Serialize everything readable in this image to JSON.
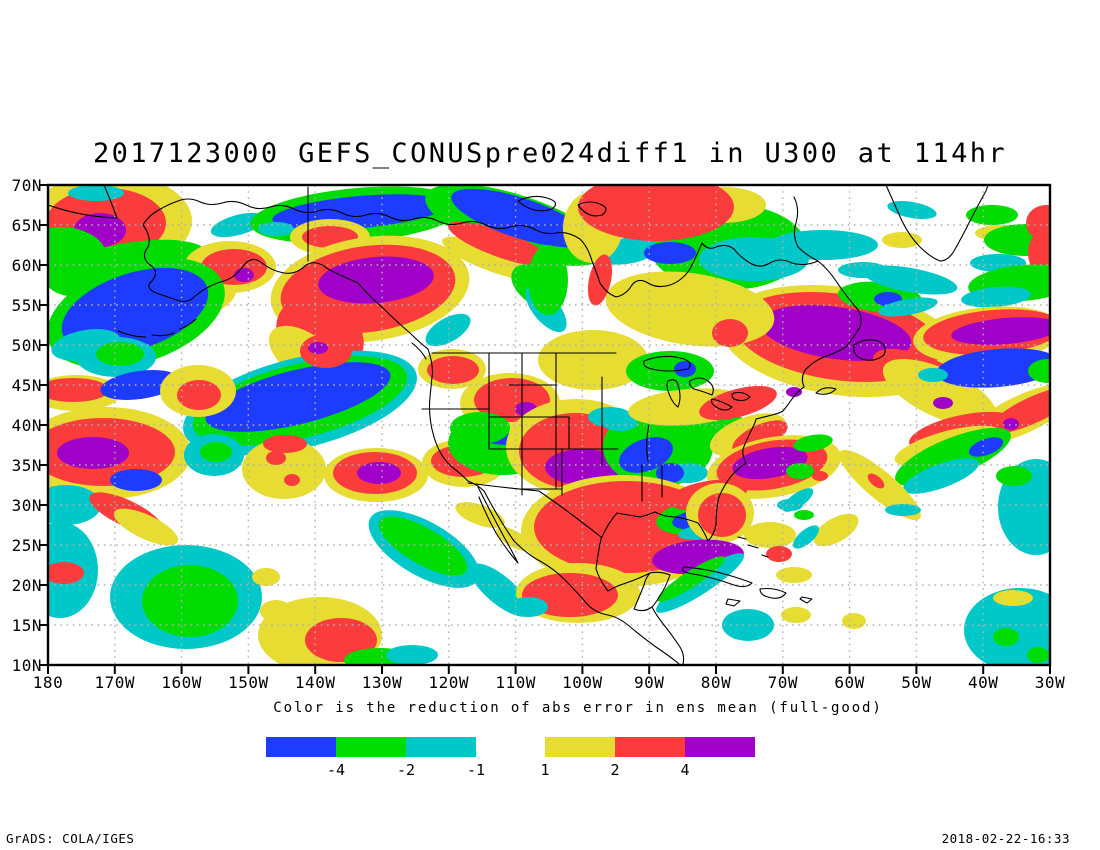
{
  "title": "2017123000 GEFS_CONUSpre024diff1 in U300 at 114hr",
  "caption": "Color is the reduction of abs error in ens mean (full-good)",
  "footer": {
    "left": "GrADS: COLA/IGES",
    "right": "2018-02-22-16:33"
  },
  "chart_data": {
    "type": "heatmap",
    "subtype": "filled-contour-map",
    "title": "2017123000 GEFS_CONUSpre024diff1 in U300 at 114hr",
    "map_extent": {
      "lon_min": -180,
      "lon_max": -30,
      "lat_min": 10,
      "lat_max": 70
    },
    "grid": "dotted 5-degree latitude / 10-degree longitude graticule",
    "x_ticks": [
      "180",
      "170W",
      "160W",
      "150W",
      "140W",
      "130W",
      "120W",
      "110W",
      "100W",
      "90W",
      "80W",
      "70W",
      "60W",
      "50W",
      "40W",
      "30W"
    ],
    "y_ticks": [
      "70N",
      "65N",
      "60N",
      "55N",
      "50N",
      "45N",
      "40N",
      "35N",
      "30N",
      "25N",
      "20N",
      "15N",
      "10N"
    ],
    "palette": {
      "B": "#1E3CFF",
      "G": "#00DC00",
      "C": "#00C8C8",
      "Y": "#E6DC32",
      "R": "#FA3C3C",
      "P": "#A000C8"
    },
    "legend": {
      "caption": "Color is the reduction of abs error in ens mean (full-good)",
      "bars": [
        {
          "colors": [
            "B",
            "G",
            "C"
          ],
          "labels": [
            "-4",
            "-2",
            "-1"
          ],
          "label_anchor": "right"
        },
        {
          "colors": [
            "Y",
            "R",
            "P"
          ],
          "labels": [
            "1",
            "2",
            "4"
          ],
          "label_anchor": "left"
        }
      ],
      "levels_meaning": "negative = error reduction (blue/green/cyan), positive = error increase (yellow/red/purple)"
    },
    "regions": [
      [
        "Y",
        62,
        36,
        82,
        48,
        0
      ],
      [
        "R",
        58,
        38,
        60,
        35,
        0
      ],
      [
        "P",
        52,
        45,
        26,
        17,
        0
      ],
      [
        "C",
        48,
        8,
        28,
        8,
        0
      ],
      [
        "G",
        12,
        70,
        46,
        28,
        0
      ],
      [
        "G",
        80,
        84,
        82,
        26,
        -10
      ],
      [
        "C",
        190,
        40,
        28,
        10,
        -15
      ],
      [
        "R",
        142,
        112,
        45,
        12,
        -28
      ],
      [
        "Y",
        152,
        126,
        40,
        10,
        -28
      ],
      [
        "G",
        310,
        30,
        108,
        27,
        -5
      ],
      [
        "B",
        312,
        27,
        88,
        16,
        -5
      ],
      [
        "C",
        228,
        44,
        18,
        7,
        0
      ],
      [
        "Y",
        282,
        52,
        40,
        18,
        0
      ],
      [
        "R",
        282,
        52,
        28,
        11,
        0
      ],
      [
        "G",
        468,
        40,
        95,
        30,
        18
      ],
      [
        "Y",
        446,
        74,
        55,
        13,
        20
      ],
      [
        "R",
        452,
        59,
        55,
        13,
        20
      ],
      [
        "B",
        472,
        33,
        72,
        20,
        18
      ],
      [
        "G",
        490,
        102,
        30,
        18,
        35
      ],
      [
        "C",
        498,
        124,
        28,
        13,
        50
      ],
      [
        "Y",
        322,
        104,
        100,
        52,
        -8
      ],
      [
        "R",
        320,
        104,
        88,
        43,
        -8
      ],
      [
        "P",
        328,
        95,
        58,
        23,
        -5
      ],
      [
        "R",
        272,
        150,
        46,
        36,
        30
      ],
      [
        "Y",
        256,
        170,
        40,
        22,
        35
      ],
      [
        "C",
        400,
        145,
        25,
        12,
        -30
      ],
      [
        "Y",
        182,
        82,
        46,
        26,
        0
      ],
      [
        "R",
        186,
        82,
        33,
        18,
        0
      ],
      [
        "P",
        196,
        90,
        10,
        7,
        0
      ],
      [
        "G",
        88,
        128,
        92,
        50,
        -18
      ],
      [
        "B",
        87,
        126,
        76,
        38,
        -18
      ],
      [
        "C",
        38,
        160,
        35,
        15,
        -10
      ],
      [
        "C",
        68,
        172,
        40,
        20,
        0
      ],
      [
        "G",
        72,
        169,
        24,
        12,
        0
      ],
      [
        "C",
        252,
        218,
        120,
        45,
        -14
      ],
      [
        "G",
        252,
        216,
        110,
        37,
        -14
      ],
      [
        "B",
        250,
        212,
        95,
        27,
        -14
      ],
      [
        "R",
        278,
        166,
        26,
        17,
        0
      ],
      [
        "P",
        270,
        163,
        10,
        6,
        0
      ],
      [
        "Y",
        28,
        208,
        45,
        18,
        0
      ],
      [
        "R",
        25,
        205,
        36,
        12,
        0
      ],
      [
        "B",
        92,
        200,
        40,
        14,
        -8
      ],
      [
        "Y",
        150,
        206,
        38,
        26,
        0
      ],
      [
        "R",
        151,
        210,
        22,
        15,
        0
      ],
      [
        "Y",
        58,
        268,
        85,
        46,
        0
      ],
      [
        "R",
        55,
        267,
        72,
        34,
        0
      ],
      [
        "P",
        45,
        268,
        36,
        16,
        0
      ],
      [
        "B",
        88,
        295,
        26,
        11,
        0
      ],
      [
        "C",
        18,
        320,
        35,
        20,
        0
      ],
      [
        "R",
        78,
        328,
        40,
        13,
        25
      ],
      [
        "Y",
        98,
        342,
        35,
        12,
        25
      ],
      [
        "C",
        166,
        270,
        30,
        21,
        0
      ],
      [
        "G",
        168,
        267,
        16,
        10,
        0
      ],
      [
        "Y",
        236,
        284,
        42,
        30,
        0
      ],
      [
        "R",
        228,
        273,
        10,
        7,
        0
      ],
      [
        "R",
        244,
        295,
        8,
        6,
        0
      ],
      [
        "R",
        237,
        259,
        22,
        9,
        0
      ],
      [
        "Y",
        328,
        290,
        52,
        27,
        0
      ],
      [
        "R",
        327,
        288,
        42,
        21,
        0
      ],
      [
        "P",
        331,
        288,
        22,
        11,
        0
      ],
      [
        "Y",
        416,
        278,
        42,
        24,
        0
      ],
      [
        "R",
        415,
        276,
        32,
        16,
        0
      ],
      [
        "G",
        455,
        258,
        55,
        32,
        0
      ],
      [
        "B",
        448,
        247,
        30,
        12,
        10
      ],
      [
        "B",
        492,
        258,
        18,
        9,
        0
      ],
      [
        "C",
        138,
        412,
        76,
        52,
        0
      ],
      [
        "G",
        142,
        416,
        48,
        36,
        0
      ],
      [
        "Y",
        218,
        392,
        14,
        9,
        0
      ],
      [
        "Y",
        228,
        426,
        16,
        11,
        0
      ],
      [
        "Y",
        272,
        450,
        62,
        38,
        0
      ],
      [
        "R",
        293,
        455,
        36,
        22,
        0
      ],
      [
        "G",
        332,
        475,
        36,
        12,
        0
      ],
      [
        "C",
        364,
        470,
        26,
        10,
        0
      ],
      [
        "C",
        376,
        364,
        62,
        27,
        30
      ],
      [
        "G",
        375,
        361,
        50,
        18,
        30
      ],
      [
        "C",
        452,
        405,
        38,
        14,
        40
      ],
      [
        "Y",
        432,
        330,
        26,
        10,
        20
      ],
      [
        "Y",
        466,
        354,
        20,
        8,
        30
      ],
      [
        "C",
        12,
        385,
        38,
        48,
        0
      ],
      [
        "R",
        16,
        388,
        20,
        11,
        0
      ],
      [
        "Y",
        462,
        218,
        50,
        30,
        0
      ],
      [
        "R",
        464,
        215,
        38,
        22,
        0
      ],
      [
        "P",
        478,
        224,
        11,
        7,
        0
      ],
      [
        "Y",
        404,
        184,
        34,
        20,
        0
      ],
      [
        "R",
        405,
        185,
        26,
        14,
        0
      ],
      [
        "G",
        432,
        243,
        30,
        16,
        0
      ],
      [
        "Y",
        528,
        262,
        70,
        48,
        0
      ],
      [
        "R",
        527,
        266,
        56,
        38,
        0
      ],
      [
        "P",
        535,
        282,
        38,
        18,
        0
      ],
      [
        "G",
        610,
        262,
        55,
        40,
        0
      ],
      [
        "C",
        640,
        288,
        20,
        10,
        0
      ],
      [
        "C",
        572,
        238,
        18,
        8,
        0
      ],
      [
        "B",
        598,
        270,
        28,
        16,
        -20
      ],
      [
        "B",
        622,
        288,
        14,
        10,
        0
      ],
      [
        "G",
        665,
        243,
        38,
        16,
        0
      ],
      [
        "Y",
        700,
        250,
        40,
        18,
        -20
      ],
      [
        "R",
        712,
        252,
        30,
        12,
        -25
      ],
      [
        "Y",
        726,
        282,
        68,
        30,
        -10
      ],
      [
        "R",
        724,
        280,
        56,
        24,
        -10
      ],
      [
        "P",
        722,
        278,
        38,
        15,
        -10
      ],
      [
        "G",
        765,
        258,
        20,
        8,
        -10
      ],
      [
        "C",
        692,
        222,
        12,
        5,
        0
      ],
      [
        "G",
        752,
        286,
        14,
        8,
        0
      ],
      [
        "R",
        772,
        291,
        8,
        5,
        0
      ],
      [
        "Y",
        792,
        156,
        120,
        54,
        8
      ],
      [
        "R",
        790,
        152,
        104,
        43,
        8
      ],
      [
        "P",
        788,
        148,
        76,
        26,
        8
      ],
      [
        "R",
        880,
        196,
        60,
        22,
        25
      ],
      [
        "Y",
        892,
        208,
        62,
        24,
        25
      ],
      [
        "G",
        832,
        112,
        42,
        15,
        5
      ],
      [
        "B",
        840,
        114,
        14,
        7,
        0
      ],
      [
        "C",
        862,
        95,
        48,
        12,
        10
      ],
      [
        "G",
        680,
        62,
        78,
        43,
        0
      ],
      [
        "C",
        706,
        74,
        55,
        22,
        0
      ],
      [
        "C",
        578,
        66,
        32,
        13,
        -8
      ],
      [
        "B",
        622,
        68,
        26,
        11,
        0
      ],
      [
        "C",
        775,
        60,
        55,
        15,
        0
      ],
      [
        "Y",
        545,
        42,
        30,
        36,
        5
      ],
      [
        "Y",
        676,
        20,
        42,
        18,
        0
      ],
      [
        "R",
        608,
        22,
        78,
        34,
        0
      ],
      [
        "Y",
        642,
        124,
        85,
        36,
        8
      ],
      [
        "R",
        682,
        148,
        18,
        14,
        0
      ],
      [
        "R",
        552,
        95,
        11,
        26,
        12
      ],
      [
        "Y",
        545,
        175,
        55,
        30,
        0
      ],
      [
        "C",
        562,
        232,
        22,
        10,
        0
      ],
      [
        "G",
        500,
        95,
        20,
        35,
        0
      ],
      [
        "G",
        622,
        186,
        44,
        20,
        0
      ],
      [
        "B",
        637,
        184,
        11,
        8,
        0
      ],
      [
        "Y",
        640,
        222,
        60,
        18,
        -5
      ],
      [
        "R",
        690,
        218,
        40,
        14,
        -15
      ],
      [
        "P",
        746,
        207,
        8,
        5,
        0
      ],
      [
        "Y",
        952,
        48,
        25,
        8,
        0
      ],
      [
        "G",
        978,
        55,
        42,
        16,
        0
      ],
      [
        "R",
        1002,
        68,
        22,
        26,
        0
      ],
      [
        "C",
        950,
        78,
        28,
        9,
        0
      ],
      [
        "C",
        864,
        25,
        25,
        8,
        10
      ],
      [
        "G",
        944,
        30,
        26,
        10,
        0
      ],
      [
        "Y",
        854,
        55,
        20,
        8,
        0
      ],
      [
        "R",
        998,
        38,
        20,
        18,
        0
      ],
      [
        "G",
        975,
        98,
        55,
        18,
        -5
      ],
      [
        "C",
        948,
        112,
        35,
        10,
        -5
      ],
      [
        "C",
        860,
        122,
        30,
        8,
        -10
      ],
      [
        "C",
        815,
        85,
        25,
        8,
        0
      ],
      [
        "Y",
        940,
        150,
        75,
        28,
        -5
      ],
      [
        "R",
        945,
        147,
        70,
        22,
        -5
      ],
      [
        "P",
        958,
        146,
        55,
        13,
        -5
      ],
      [
        "B",
        950,
        183,
        62,
        19,
        -5
      ],
      [
        "G",
        1000,
        186,
        20,
        12,
        0
      ],
      [
        "C",
        885,
        190,
        15,
        7,
        0
      ],
      [
        "Y",
        975,
        229,
        60,
        19,
        -25
      ],
      [
        "R",
        985,
        225,
        48,
        13,
        -25
      ],
      [
        "R",
        915,
        247,
        55,
        17,
        -12
      ],
      [
        "P",
        895,
        218,
        10,
        6,
        0
      ],
      [
        "P",
        963,
        239,
        8,
        6,
        0
      ],
      [
        "Y",
        900,
        261,
        55,
        15,
        -15
      ],
      [
        "G",
        905,
        272,
        62,
        19,
        -22
      ],
      [
        "B",
        938,
        262,
        18,
        8,
        -20
      ],
      [
        "C",
        893,
        291,
        40,
        12,
        -20
      ],
      [
        "C",
        988,
        322,
        38,
        48,
        0
      ],
      [
        "G",
        966,
        291,
        18,
        10,
        0
      ],
      [
        "Y",
        575,
        346,
        102,
        56,
        0
      ],
      [
        "R",
        578,
        342,
        92,
        46,
        0
      ],
      [
        "G",
        650,
        332,
        42,
        17,
        -8
      ],
      [
        "B",
        645,
        335,
        21,
        9,
        -8
      ],
      [
        "C",
        660,
        346,
        30,
        8,
        -8
      ],
      [
        "R",
        660,
        310,
        40,
        14,
        -10
      ],
      [
        "Y",
        672,
        328,
        34,
        30,
        0
      ],
      [
        "R",
        674,
        330,
        24,
        22,
        0
      ],
      [
        "P",
        650,
        372,
        46,
        17,
        -5
      ],
      [
        "C",
        652,
        398,
        52,
        11,
        -33
      ],
      [
        "G",
        643,
        394,
        40,
        8,
        -33
      ],
      [
        "Y",
        530,
        408,
        62,
        30,
        0
      ],
      [
        "R",
        522,
        410,
        48,
        22,
        0
      ],
      [
        "C",
        480,
        422,
        20,
        10,
        0
      ],
      [
        "Y",
        722,
        350,
        26,
        13,
        0
      ],
      [
        "R",
        731,
        369,
        13,
        8,
        0
      ],
      [
        "Y",
        746,
        390,
        18,
        8,
        0
      ],
      [
        "C",
        742,
        320,
        13,
        6,
        0
      ],
      [
        "C",
        750,
        315,
        18,
        7,
        -35
      ],
      [
        "G",
        756,
        330,
        10,
        5,
        0
      ],
      [
        "C",
        700,
        440,
        26,
        16,
        0
      ],
      [
        "Y",
        748,
        430,
        15,
        8,
        0
      ],
      [
        "Y",
        806,
        436,
        12,
        8,
        0
      ],
      [
        "Y",
        788,
        345,
        25,
        12,
        -30
      ],
      [
        "C",
        758,
        352,
        16,
        7,
        -40
      ],
      [
        "C",
        972,
        445,
        56,
        42,
        0
      ],
      [
        "G",
        958,
        452,
        13,
        9,
        0
      ],
      [
        "G",
        990,
        470,
        11,
        8,
        0
      ],
      [
        "Y",
        965,
        413,
        20,
        8,
        0
      ],
      [
        "Y",
        832,
        300,
        52,
        14,
        40
      ],
      [
        "R",
        828,
        296,
        10,
        5,
        40
      ],
      [
        "C",
        855,
        325,
        18,
        6,
        0
      ]
    ]
  }
}
